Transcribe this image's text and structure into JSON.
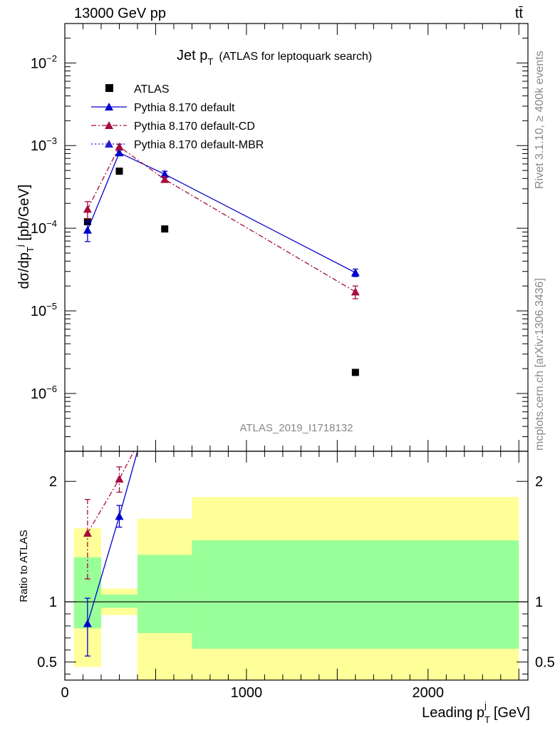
{
  "header": {
    "energy_label": "13000 GeV pp",
    "process_label": "tt̄"
  },
  "side": {
    "rivet_label": "Rivet 3.1.10, ≥ 400k events",
    "source_label": "mcplots.cern.ch [arXiv:1306.3436]"
  },
  "chart_data": [
    {
      "type": "scatter",
      "panel": "main",
      "title": "Jet p_T (ATLAS for leptoquark search)",
      "title_main": "Jet p",
      "title_sub": "T",
      "title_rest": "(ATLAS for leptoquark search)",
      "ylabel": "dσ/dp_T^j [pb/GeV]",
      "y_scale": "log",
      "ylim": [
        2e-07,
        0.03
      ],
      "xlim": [
        0,
        2550
      ],
      "analysis_id": "ATLAS_2019_I1718132",
      "y_tick_labels": [
        "10^-6",
        "10^-5",
        "10^-4",
        "10^-3",
        "10^-2"
      ],
      "series": [
        {
          "name": "ATLAS",
          "style": "marker",
          "color": "#000000",
          "x": [
            125,
            300,
            550,
            1600
          ],
          "y": [
            0.00012,
            0.00049,
            9.8e-05,
            1.8e-06
          ]
        },
        {
          "name": "Pythia 8.170 default",
          "style": "solid",
          "color": "#0000cc",
          "x": [
            125,
            300,
            550,
            1600
          ],
          "y": [
            9.5e-05,
            0.00082,
            0.00045,
            2.9e-05
          ],
          "err": [
            2.6e-05,
            6e-05,
            4e-05,
            3e-06
          ]
        },
        {
          "name": "Pythia 8.170 default-CD",
          "style": "dashdot",
          "color": "#a50d3c",
          "x": [
            125,
            300,
            550,
            1600
          ],
          "y": [
            0.00017,
            0.00097,
            0.00039,
            1.7e-05
          ],
          "err": [
            4e-05,
            7e-05,
            3e-05,
            3e-06
          ]
        },
        {
          "name": "Pythia 8.170 default-MBR",
          "style": "dotted",
          "color": "#2a1ad1",
          "x": [],
          "y": []
        }
      ]
    },
    {
      "type": "scatter",
      "panel": "ratio",
      "ylabel": "Ratio to ATLAS",
      "xlabel": "Leading p_T^j [GeV]",
      "xlabel_main": "Leading p",
      "xlabel_sup": "j",
      "xlabel_sub": "T",
      "xlabel_unit": "[GeV]",
      "ylim": [
        0.35,
        2.25
      ],
      "xlim": [
        0,
        2550
      ],
      "x_tick_labels": [
        "0",
        "1000",
        "2000"
      ],
      "y_tick_labels": [
        "0.5",
        "1",
        "2"
      ],
      "bands": [
        {
          "x_low": 50,
          "x_high": 200,
          "yellow": [
            0.46,
            1.61
          ],
          "green": [
            0.78,
            1.37
          ]
        },
        {
          "x_low": 200,
          "x_high": 400,
          "yellow": [
            0.89,
            1.11
          ],
          "green": [
            0.95,
            1.06
          ]
        },
        {
          "x_low": 400,
          "x_high": 700,
          "yellow": [
            0.35,
            1.69
          ],
          "green": [
            0.74,
            1.39
          ]
        },
        {
          "x_low": 700,
          "x_high": 2500,
          "yellow": [
            0.35,
            1.87
          ],
          "green": [
            0.61,
            1.51
          ]
        }
      ],
      "series": [
        {
          "name": "Pythia 8.170 default",
          "color": "#0000cc",
          "x": [
            125,
            300,
            400
          ],
          "y": [
            0.82,
            1.71,
            2.25
          ],
          "err_low": [
            0.27,
            0.09,
            0
          ],
          "err_high": [
            0.21,
            0.09,
            0
          ]
        },
        {
          "name": "Pythia 8.170 default-CD",
          "color": "#a50d3c",
          "x": [
            125,
            300,
            380
          ],
          "y": [
            1.57,
            2.02,
            2.25
          ],
          "err_low": [
            0.38,
            0.11,
            0
          ],
          "err_high": [
            0.28,
            0.1,
            0
          ]
        }
      ]
    }
  ]
}
